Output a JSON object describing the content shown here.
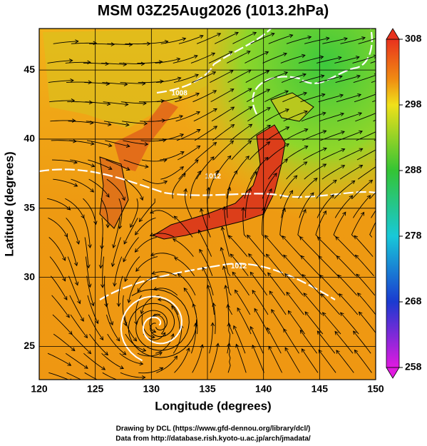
{
  "chart_data": {
    "type": "map",
    "title": "MSM 03Z25Aug2026 (1013.2hPa)",
    "x_label": "Longitude (degrees)",
    "y_label": "Latitude  (degrees)",
    "xlim": [
      120,
      150
    ],
    "xticks": [
      120,
      125,
      130,
      135,
      140,
      145,
      150
    ],
    "ylim": [
      22.6,
      48
    ],
    "yticks": [
      25,
      30,
      35,
      40,
      45
    ],
    "colorbar": {
      "lim": [
        258,
        308
      ],
      "ticks": [
        258,
        268,
        278,
        288,
        298,
        308
      ]
    },
    "contour_labels": [
      {
        "text": "1008",
        "lon": 132.5,
        "lat": 43.3
      },
      {
        "text": "1012",
        "lon": 135.5,
        "lat": 37.3
      },
      {
        "text": "1012",
        "lon": 137.8,
        "lat": 30.8
      }
    ],
    "credits": [
      "Drawing by DCL (https://www.gfd-dennou.org/library/dcl/)",
      "Data from http://database.rish.kyoto-u.ac.jp/arch/jmadata/"
    ]
  }
}
